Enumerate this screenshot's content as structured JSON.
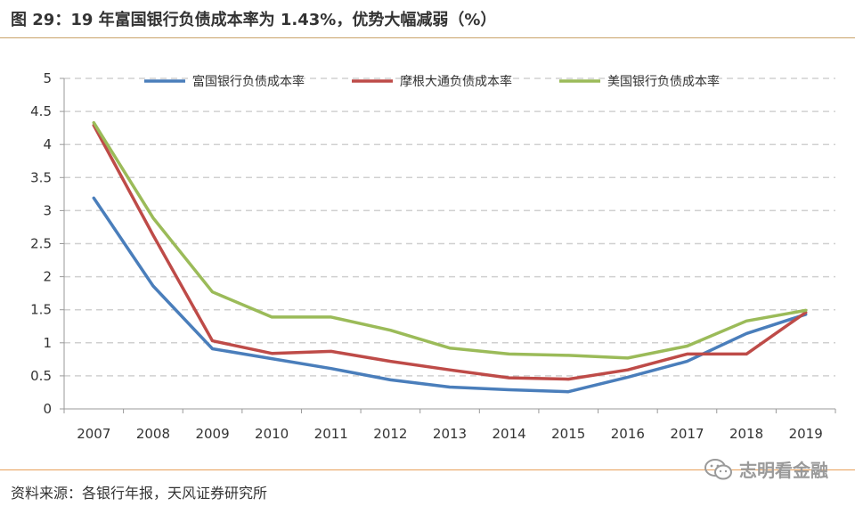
{
  "header": {
    "title": "图 29：19 年富国银行负债成本率为 1.43%，优势大幅减弱（%）"
  },
  "footer": {
    "source": "资料来源：各银行年报，天风证券研究所",
    "watermark": "志明看金融"
  },
  "colors": {
    "accent_rule_top": "#c9a36a",
    "accent_rule_bottom": "#e8a05a",
    "grid": "#d0d0d0"
  },
  "chart_data": {
    "type": "line",
    "title": "",
    "xlabel": "",
    "ylabel": "",
    "x": [
      "2007",
      "2008",
      "2009",
      "2010",
      "2011",
      "2012",
      "2013",
      "2014",
      "2015",
      "2016",
      "2017",
      "2018",
      "2019"
    ],
    "ylim": [
      0,
      5
    ],
    "yticks": [
      "0",
      "0.5",
      "1",
      "1.5",
      "2",
      "2.5",
      "3",
      "3.5",
      "4",
      "4.5",
      "5"
    ],
    "grid": "horizontal dashed",
    "legend_position": "top",
    "series": [
      {
        "name": "富国银行负债成本率",
        "color": "#4a7ebb",
        "values": [
          3.19,
          1.86,
          0.91,
          0.76,
          0.61,
          0.44,
          0.33,
          0.29,
          0.26,
          0.48,
          0.72,
          1.14,
          1.43
        ]
      },
      {
        "name": "摩根大通负债成本率",
        "color": "#be4b48",
        "values": [
          4.29,
          2.63,
          1.03,
          0.84,
          0.87,
          0.72,
          0.59,
          0.47,
          0.45,
          0.59,
          0.83,
          0.83,
          1.46
        ]
      },
      {
        "name": "美国银行负债成本率",
        "color": "#9bbb59",
        "values": [
          4.33,
          2.89,
          1.77,
          1.39,
          1.39,
          1.19,
          0.92,
          0.83,
          0.81,
          0.77,
          0.95,
          1.33,
          1.49
        ]
      }
    ]
  }
}
